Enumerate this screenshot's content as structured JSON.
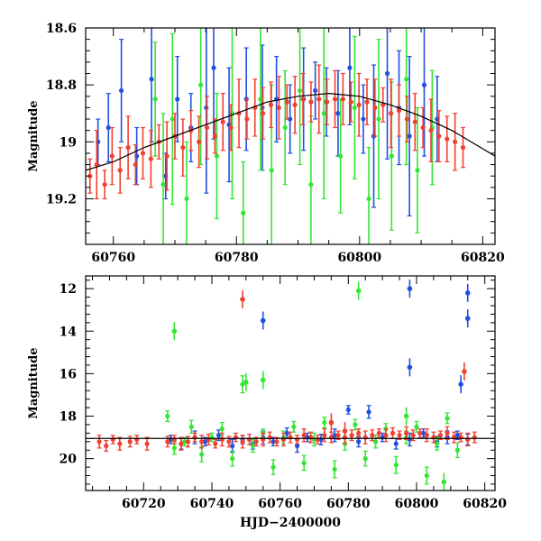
{
  "chart_data": [
    {
      "type": "scatter",
      "title": "",
      "xlabel": "",
      "ylabel": "Magnitude",
      "xlim": [
        60755.5,
        60822
      ],
      "ylim": [
        19.36,
        18.6
      ],
      "y_inverted": true,
      "xticks": [
        60760,
        60780,
        60800,
        60820
      ],
      "yticks": [
        18.6,
        18.8,
        19,
        19.2
      ],
      "ytick_labels": [
        "18.6",
        "18.8",
        "19",
        "19.2"
      ],
      "colors": {
        "blue": "#1f4fe0",
        "green": "#33e633",
        "red": "#f04030",
        "model": "#000000"
      },
      "series": [
        {
          "color": "#1f4fe0",
          "x": [
            60757.5,
            60759.2,
            60761.3,
            60763.8,
            60766.2,
            60768.5,
            60770.4,
            60772.6,
            60775.1,
            60776.3,
            60778.8,
            60781.6,
            60784.2,
            60786.5,
            60788.7,
            60790.9,
            60792.8,
            60794.6,
            60796.5,
            60798.4,
            60800.6,
            60802.3,
            60804.5,
            60806.4,
            60808.1,
            60810.5,
            60812.6
          ],
          "y": [
            19.0,
            18.95,
            18.82,
            19.05,
            18.78,
            19.12,
            18.85,
            18.95,
            18.88,
            18.74,
            18.94,
            18.85,
            18.88,
            18.85,
            18.92,
            18.85,
            18.82,
            18.86,
            18.9,
            18.74,
            18.92,
            18.98,
            18.76,
            18.88,
            18.98,
            18.8,
            18.92
          ],
          "err": [
            0.08,
            0.12,
            0.18,
            0.1,
            0.22,
            0.08,
            0.15,
            0.12,
            0.3,
            0.25,
            0.2,
            0.18,
            0.22,
            0.15,
            0.12,
            0.18,
            0.1,
            0.12,
            0.15,
            0.2,
            0.12,
            0.25,
            0.3,
            0.2,
            0.28,
            0.25,
            0.15
          ]
        },
        {
          "color": "#33e633",
          "x": [
            60766.8,
            60768.1,
            60769.6,
            60771.9,
            60774.2,
            60776.8,
            60779.3,
            60781.1,
            60783.9,
            60785.7,
            60787.9,
            60790.3,
            60792.1,
            60794.2,
            60796.9,
            60799.2,
            60801.5,
            60803.1,
            60805.2,
            60807.6,
            60809.4,
            60811.8
          ],
          "y": [
            18.85,
            19.15,
            18.92,
            19.2,
            18.8,
            19.05,
            18.9,
            19.25,
            18.85,
            19.1,
            18.95,
            18.82,
            19.15,
            18.9,
            19.05,
            18.88,
            19.2,
            18.92,
            19.05,
            18.78,
            19.1,
            18.95
          ],
          "err": [
            0.2,
            0.25,
            0.3,
            0.2,
            0.28,
            0.22,
            0.3,
            0.18,
            0.25,
            0.3,
            0.2,
            0.26,
            0.24,
            0.3,
            0.2,
            0.25,
            0.18,
            0.28,
            0.26,
            0.3,
            0.22,
            0.2
          ]
        },
        {
          "color": "#f04030",
          "x": [
            60756.2,
            60757.3,
            60758.6,
            60759.8,
            60761.1,
            60762.4,
            60763.6,
            60764.8,
            60766.1,
            60767.4,
            60768.7,
            60770.0,
            60771.3,
            60772.6,
            60773.9,
            60775.2,
            60776.5,
            60777.8,
            60779.1,
            60780.4,
            60781.7,
            60783.0,
            60784.3,
            60785.6,
            60786.9,
            60788.2,
            60789.5,
            60790.8,
            60792.1,
            60793.4,
            60794.7,
            60796.0,
            60797.3,
            60798.6,
            60799.9,
            60801.2,
            60802.5,
            60803.8,
            60805.1,
            60806.4,
            60807.7,
            60809.0,
            60810.3,
            60811.6,
            60812.9,
            60814.2,
            60815.5,
            60816.8
          ],
          "y": [
            19.12,
            19.08,
            19.15,
            19.05,
            19.1,
            19.02,
            19.08,
            19.04,
            19.06,
            19.0,
            19.05,
            18.98,
            19.02,
            18.96,
            19.0,
            18.95,
            18.98,
            18.93,
            18.95,
            18.9,
            18.92,
            18.88,
            18.9,
            18.87,
            18.88,
            18.86,
            18.87,
            18.85,
            18.86,
            18.85,
            18.86,
            18.85,
            18.85,
            18.86,
            18.87,
            18.86,
            18.88,
            18.87,
            18.9,
            18.89,
            18.92,
            18.93,
            18.95,
            18.96,
            18.98,
            18.99,
            19.0,
            19.02
          ],
          "err": [
            0.06,
            0.12,
            0.05,
            0.1,
            0.08,
            0.11,
            0.07,
            0.09,
            0.1,
            0.06,
            0.12,
            0.08,
            0.1,
            0.07,
            0.09,
            0.11,
            0.06,
            0.1,
            0.08,
            0.12,
            0.07,
            0.1,
            0.09,
            0.08,
            0.11,
            0.06,
            0.1,
            0.09,
            0.07,
            0.12,
            0.08,
            0.1,
            0.09,
            0.07,
            0.11,
            0.08,
            0.1,
            0.06,
            0.12,
            0.09,
            0.08,
            0.1,
            0.07,
            0.11,
            0.09,
            0.08,
            0.1,
            0.07
          ]
        }
      ],
      "model": {
        "x": [
          60755.5,
          60760,
          60765,
          60770,
          60775,
          60780,
          60785,
          60790,
          60795,
          60800,
          60805,
          60810,
          60815,
          60822
        ],
        "y": [
          19.1,
          19.07,
          19.02,
          18.98,
          18.94,
          18.9,
          18.86,
          18.84,
          18.83,
          18.84,
          18.87,
          18.91,
          18.96,
          19.05
        ]
      }
    },
    {
      "type": "scatter",
      "title": "",
      "xlabel": "HJD−2400000",
      "ylabel": "Magnitude",
      "xlim": [
        60703,
        60823
      ],
      "ylim": [
        21.5,
        11.4
      ],
      "y_inverted": true,
      "xticks": [
        60720,
        60740,
        60760,
        60780,
        60800,
        60820
      ],
      "yticks": [
        12,
        14,
        16,
        18,
        20
      ],
      "colors": {
        "blue": "#1f4fe0",
        "green": "#33e633",
        "red": "#f04030",
        "model": "#000000"
      },
      "series": [
        {
          "color": "#1f4fe0",
          "x": [
            60728,
            60731,
            60735,
            60738,
            60742,
            60746,
            60749,
            60752,
            60755,
            60758,
            60762,
            60765,
            60768,
            60772,
            60776,
            60780,
            60783,
            60786,
            60790,
            60794,
            60798,
            60802,
            60806,
            60809,
            60812,
            60815
          ],
          "y": [
            19.1,
            19.3,
            19.0,
            19.2,
            18.9,
            19.4,
            19.1,
            19.3,
            19.0,
            19.2,
            18.8,
            19.4,
            19.0,
            19.1,
            18.9,
            17.7,
            19.2,
            17.8,
            19.0,
            19.3,
            19.1,
            18.8,
            19.2,
            19.0,
            18.9,
            19.1
          ],
          "err": [
            0.2,
            0.25,
            0.3,
            0.2,
            0.25,
            0.3,
            0.2,
            0.25,
            0.3,
            0.2,
            0.25,
            0.3,
            0.2,
            0.25,
            0.3,
            0.2,
            0.25,
            0.3,
            0.2,
            0.25,
            0.3,
            0.2,
            0.25,
            0.3,
            0.2,
            0.25
          ],
          "outliers": [
            [
              60755,
              13.5
            ],
            [
              60798,
              12.0
            ],
            [
              60798,
              15.7
            ],
            [
              60813,
              16.5
            ],
            [
              60815,
              12.2
            ],
            [
              60815,
              13.4
            ]
          ]
        },
        {
          "color": "#33e633",
          "x": [
            60727,
            60729,
            60732,
            60734,
            60737,
            60740,
            60743,
            60746,
            60749,
            60752,
            60755,
            60758,
            60761,
            60764,
            60767,
            60770,
            60773,
            60776,
            60779,
            60782,
            60785,
            60788,
            60791,
            60794,
            60797,
            60800,
            60803,
            60806,
            60809,
            60812
          ],
          "y": [
            18.0,
            19.5,
            19.2,
            18.5,
            19.8,
            19.0,
            18.6,
            20.0,
            16.5,
            19.4,
            18.8,
            20.4,
            19.0,
            18.5,
            20.2,
            19.1,
            18.3,
            20.5,
            19.3,
            18.4,
            20.0,
            19.2,
            18.6,
            20.3,
            19.0,
            18.5,
            20.8,
            19.3,
            18.1,
            19.6
          ],
          "err": [
            0.25,
            0.3,
            0.2,
            0.3,
            0.35,
            0.2,
            0.3,
            0.35,
            0.4,
            0.3,
            0.2,
            0.35,
            0.3,
            0.25,
            0.35,
            0.3,
            0.25,
            0.4,
            0.3,
            0.25,
            0.35,
            0.3,
            0.25,
            0.4,
            0.3,
            0.25,
            0.4,
            0.3,
            0.25,
            0.35
          ],
          "outliers": [
            [
              60729,
              14.0
            ],
            [
              60750,
              16.4
            ],
            [
              60755,
              16.3
            ],
            [
              60783,
              12.1
            ],
            [
              60797,
              18.0
            ],
            [
              60808,
              21.1
            ]
          ]
        },
        {
          "color": "#f04030",
          "x": [
            60707,
            60709,
            60711,
            60713,
            60716,
            60718,
            60721,
            60727,
            60729,
            60731,
            60733,
            60735,
            60737,
            60739,
            60741,
            60743,
            60745,
            60747,
            60749,
            60751,
            60753,
            60755,
            60757,
            60759,
            60761,
            60763,
            60765,
            60767,
            60769,
            60771,
            60773,
            60775,
            60777,
            60779,
            60781,
            60783,
            60785,
            60787,
            60789,
            60791,
            60793,
            60795,
            60797,
            60799,
            60801,
            60803,
            60805,
            60807,
            60809,
            60811,
            60813,
            60815,
            60817
          ],
          "y": [
            19.2,
            19.4,
            19.1,
            19.3,
            19.2,
            19.1,
            19.3,
            19.2,
            19.1,
            19.3,
            19.2,
            19.0,
            19.2,
            19.1,
            19.3,
            19.1,
            19.2,
            19.0,
            19.2,
            19.1,
            19.2,
            19.1,
            19.0,
            19.2,
            19.1,
            19.0,
            19.1,
            18.9,
            19.0,
            19.1,
            18.9,
            19.0,
            18.9,
            19.0,
            18.9,
            18.8,
            19.0,
            18.9,
            18.8,
            18.9,
            18.8,
            18.9,
            18.8,
            18.9,
            18.8,
            18.9,
            19.0,
            18.9,
            18.8,
            19.0,
            19.0,
            19.1,
            19.0
          ],
          "err": [
            0.3,
            0.25,
            0.2,
            0.3,
            0.25,
            0.2,
            0.3,
            0.25,
            0.2,
            0.3,
            0.25,
            0.2,
            0.3,
            0.25,
            0.2,
            0.3,
            0.25,
            0.2,
            0.3,
            0.25,
            0.2,
            0.3,
            0.25,
            0.2,
            0.3,
            0.25,
            0.2,
            0.3,
            0.25,
            0.2,
            0.3,
            0.25,
            0.2,
            0.3,
            0.25,
            0.2,
            0.3,
            0.25,
            0.2,
            0.3,
            0.25,
            0.2,
            0.3,
            0.25,
            0.2,
            0.3,
            0.25,
            0.2,
            0.3,
            0.25,
            0.2,
            0.3,
            0.25
          ],
          "outliers": [
            [
              60749,
              12.5
            ],
            [
              60775,
              18.3
            ],
            [
              60779,
              18.7
            ],
            [
              60814,
              15.9
            ]
          ]
        }
      ],
      "model": {
        "x": [
          60703,
          60823
        ],
        "y": [
          19.05,
          19.05
        ]
      }
    }
  ]
}
